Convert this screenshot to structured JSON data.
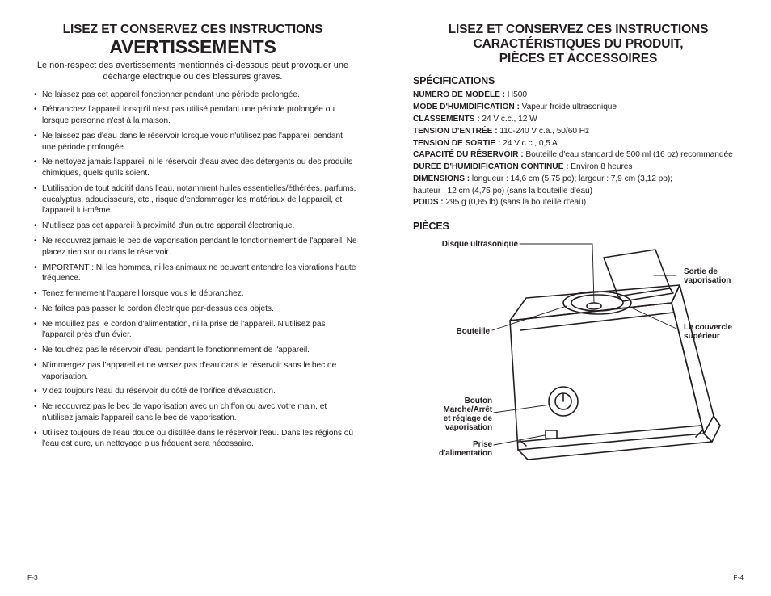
{
  "left": {
    "sup_title": "LISEZ ET CONSERVEZ CES INSTRUCTIONS",
    "main_title": "AVERTISSEMENTS",
    "intro": "Le non-respect des avertissements mentionnés ci-dessous peut provoquer une décharge électrique ou des blessures graves.",
    "warnings": [
      "Ne laissez pas cet appareil fonctionner pendant une période prolongée.",
      "Débranchez l'appareil lorsqu'il n'est pas utilisé pendant une période prolongée ou lorsque personne n'est à la maison.",
      "Ne laissez pas d'eau dans le réservoir lorsque vous n'utilisez pas l'appareil pendant une période prolongée.",
      "Ne nettoyez jamais l'appareil ni le réservoir d'eau avec des détergents ou des produits chimiques, quels qu'ils soient.",
      "L'utilisation de tout additif dans l'eau, notamment huiles essentielles/éthérées, parfums, eucalyptus, adoucisseurs, etc., risque d'endommager les matériaux de l'appareil, et l'appareil lui-même.",
      "N'utilisez pas cet appareil à proximité d'un autre appareil électronique.",
      "Ne recouvrez jamais le bec de vaporisation pendant le fonctionnement de l'appareil. Ne placez rien sur ou dans le réservoir.",
      "IMPORTANT : Ni les hommes, ni les animaux ne peuvent entendre les vibrations haute fréquence.",
      "Tenez fermement l'appareil lorsque vous le débranchez.",
      "Ne faites pas passer le cordon électrique par-dessus des objets.",
      "Ne mouillez pas le cordon d'alimentation, ni la prise de l'appareil. N'utilisez pas l'appareil près d'un évier.",
      "Ne touchez pas le réservoir d'eau pendant le fonctionnement de l'appareil.",
      "N'immergez pas l'appareil et ne versez pas d'eau dans le réservoir sans le bec de vaporisation.",
      "Videz toujours l'eau du réservoir du côté de l'orifice d'évacuation.",
      "Ne recouvrez pas le bec de vaporisation avec un chiffon ou avec votre main, et n'utilisez jamais l'appareil sans le bec de vaporisation.",
      "Utilisez toujours de l'eau douce ou distillée dans le réservoir l'eau. Dans les régions où l'eau est dure, un nettoyage plus fréquent sera nécessaire."
    ],
    "page": "F-3"
  },
  "right": {
    "sup_title": "LISEZ ET CONSERVEZ CES INSTRUCTIONS",
    "main_line1": "CARACTÉRISTIQUES DU PRODUIT,",
    "main_line2": "PIÈCES ET ACCESSOIRES",
    "spec_head": "SPÉCIFICATIONS",
    "specs": [
      {
        "label": "NUMÉRO DE MODÈLE :",
        "value": " H500"
      },
      {
        "label": "MODE D'HUMIDIFICATION :",
        "value": " Vapeur froide ultrasonique"
      },
      {
        "label": "CLASSEMENTS :",
        "value": " 24 V c.c., 12 W"
      },
      {
        "label": "TENSION D'ENTRÉE :",
        "value": " 110-240 V c.a., 50/60 Hz"
      },
      {
        "label": "TENSION DE SORTIE :",
        "value": " 24 V c.c., 0,5 A"
      },
      {
        "label": "CAPACITÉ DU RÉSERVOIR :",
        "value": " Bouteille d'eau standard de 500 ml (16 oz) recommandée"
      },
      {
        "label": "DURÉE D'HUMIDIFICATION CONTINUE :",
        "value": " Environ 8 heures"
      },
      {
        "label": "DIMENSIONS :",
        "value": " longueur : 14,6 cm (5,75 po); largeur : 7,9 cm (3,12 po);"
      },
      {
        "label": "",
        "value": "hauteur : 12 cm (4,75 po) (sans la bouteille d'eau)"
      },
      {
        "label": "POIDS :",
        "value": " 295 g (0,65 lb) (sans la bouteille d'eau)"
      }
    ],
    "parts_head": "PIÈCES",
    "callouts": {
      "disc": "Disque ultrasonique",
      "spout": "Sortie de\nvaporisation",
      "bottle": "Bouteille",
      "lid": "Le couvercle\nsupérieur",
      "knob": "Bouton\nMarche/Arrêt\net réglage de\nvaporisation",
      "power": "Prise\nd'alimentation"
    },
    "page": "F-4",
    "diagram": {
      "stroke": "#231f20",
      "line_width": 1.5
    }
  }
}
